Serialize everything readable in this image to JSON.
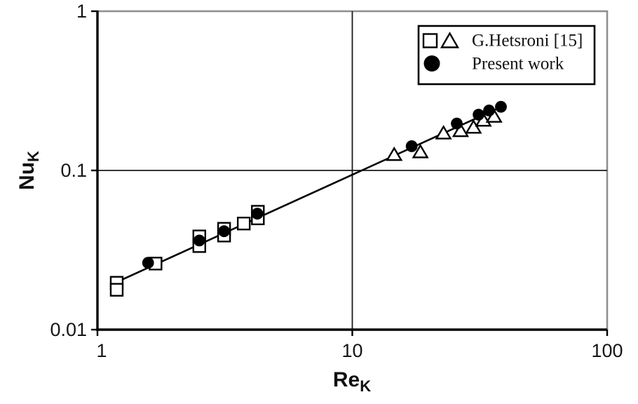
{
  "figure": {
    "background": "#ffffff",
    "axis_color": "#000000",
    "outer_border_color": "#8f8f8f",
    "gridline_color": "#1a1a1a",
    "marker_color": "#000000"
  },
  "chart_data": {
    "type": "scatter",
    "x_axis": {
      "label": "Re",
      "label_subscript": "K",
      "scale": "log",
      "min": 1,
      "max": 100,
      "ticks": [
        1,
        10,
        100
      ],
      "tick_labels": [
        "1",
        "10",
        "100"
      ]
    },
    "y_axis": {
      "label": "Nu",
      "label_subscript": "K",
      "scale": "log",
      "min": 0.01,
      "max": 1,
      "ticks": [
        0.01,
        0.1,
        1
      ],
      "tick_labels": [
        "0.01",
        "0.1",
        "1"
      ]
    },
    "gridlines": {
      "x": [
        10
      ],
      "y": [
        0.1
      ],
      "grid_on": true
    },
    "legend": {
      "position": "top-right",
      "entries": [
        {
          "markers": [
            "square",
            "triangle"
          ],
          "label": "G.Hetsroni [15]"
        },
        {
          "markers": [
            "circle"
          ],
          "label": "Present work"
        }
      ]
    },
    "series": [
      {
        "name": "G.Hetsroni [15] (squares)",
        "marker": "square",
        "points": [
          [
            1.19,
            0.0197
          ],
          [
            1.19,
            0.0178
          ],
          [
            1.69,
            0.026
          ],
          [
            2.51,
            0.0385
          ],
          [
            2.51,
            0.0335
          ],
          [
            3.14,
            0.043
          ],
          [
            3.14,
            0.039
          ],
          [
            3.75,
            0.0464
          ],
          [
            4.26,
            0.055
          ],
          [
            4.26,
            0.05
          ]
        ]
      },
      {
        "name": "G.Hetsroni [15] (triangles)",
        "marker": "triangle",
        "points": [
          [
            14.6,
            0.126
          ],
          [
            18.5,
            0.131
          ],
          [
            22.8,
            0.172
          ],
          [
            26.6,
            0.178
          ],
          [
            29.9,
            0.187
          ],
          [
            32.7,
            0.207
          ],
          [
            36.0,
            0.219
          ]
        ]
      },
      {
        "name": "Present work",
        "marker": "circle",
        "points": [
          [
            1.58,
            0.0263
          ],
          [
            2.51,
            0.0363
          ],
          [
            3.14,
            0.0415
          ],
          [
            4.24,
            0.0535
          ],
          [
            17.1,
            0.142
          ],
          [
            25.7,
            0.197
          ],
          [
            31.3,
            0.224
          ],
          [
            34.4,
            0.238
          ],
          [
            38.3,
            0.251
          ]
        ]
      }
    ],
    "trendline": {
      "x1": 1.19,
      "y1": 0.0199,
      "x2": 39.0,
      "y2": 0.2535
    }
  }
}
